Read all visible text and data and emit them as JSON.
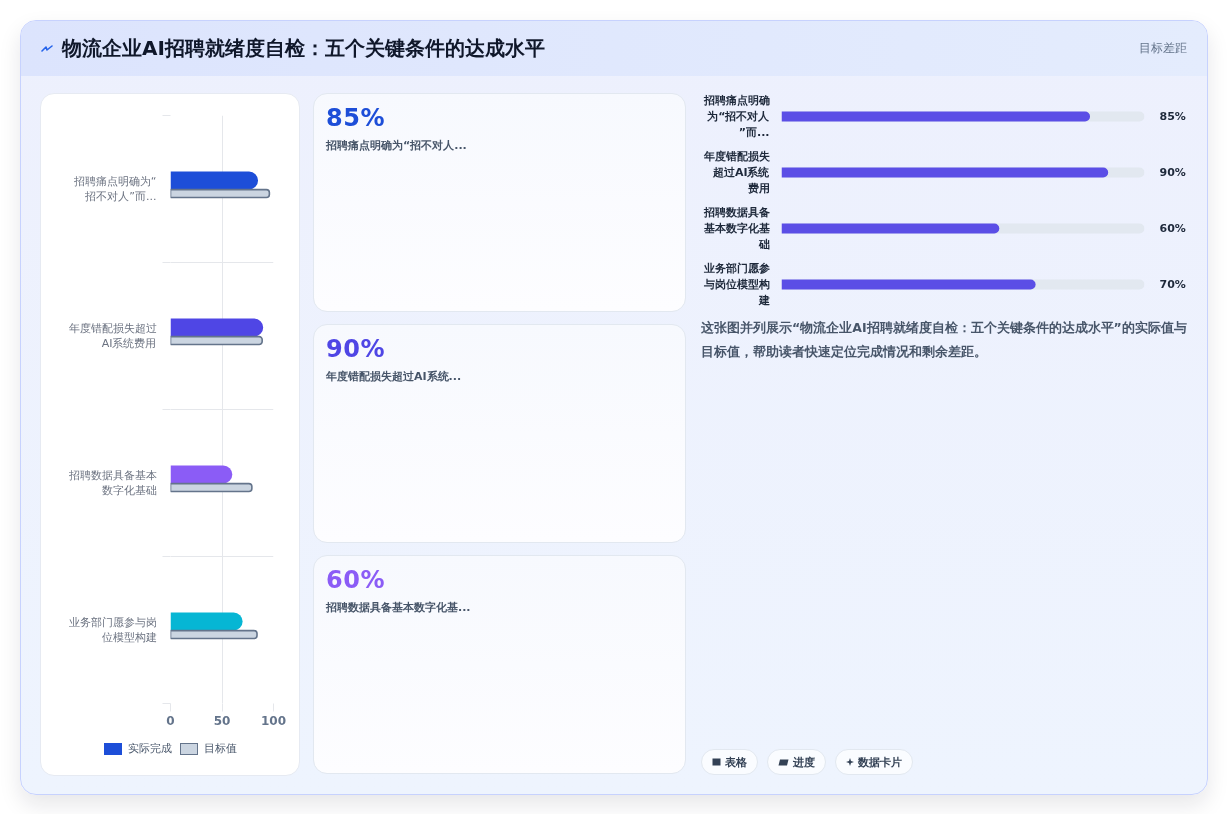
{
  "chart_data": [
    {
      "type": "bar",
      "orientation": "horizontal",
      "title": "物流企业AI招聘就绪度自检：五个关键条件的达成水平",
      "categories": [
        "招聘痛点明确为“招不对人”而...",
        "年度错配损失超过AI系统费用",
        "招聘数据具备基本数字化基础",
        "业务部门愿参与岗位模型构建"
      ],
      "series": [
        {
          "name": "实际完成",
          "colors": [
            "#1d4ed8",
            "#4f46e5",
            "#8b5cf6",
            "#06b6d4"
          ],
          "values": [
            85,
            90,
            60,
            70
          ]
        },
        {
          "name": "目标值",
          "color": "#cbd5e1",
          "values": [
            96,
            89,
            79,
            84
          ]
        }
      ],
      "xlim": [
        0,
        100
      ],
      "xticks": [
        0,
        50,
        100
      ],
      "grid": true,
      "legend": "bottom"
    },
    {
      "type": "other",
      "categories": [
        "招聘痛点明确为“招不对人...",
        "年度错配损失超过AI系统...",
        "招聘数据具备基本数字化基..."
      ],
      "value_labels": [
        "85%",
        "90%",
        "60%"
      ]
    },
    {
      "type": "bar",
      "orientation": "horizontal",
      "title": "目标差距",
      "categories": [
        "招聘痛点明确为“招不对人”而...",
        "年度错配损失超过AI系统费用",
        "招聘数据具备基本数字化基础",
        "业务部门愿参与岗位模型构建"
      ],
      "values": [
        85,
        90,
        60,
        70
      ],
      "value_labels": [
        "85%",
        "90%",
        "60%",
        "70%"
      ],
      "color": "#5b4ee6",
      "xlim": [
        0,
        100
      ],
      "tick_labels": "y",
      "annotations": [
        "这张图并列展示“物流企业AI招聘就绪度自检：五个关键条件的达成水平”的实际值与目标值，帮助读者快速定位完成情况和剩余差距。"
      ]
    },
    {
      "type": "other",
      "annotations": [
        "表格",
        "进度",
        "数据卡片"
      ]
    }
  ]
}
